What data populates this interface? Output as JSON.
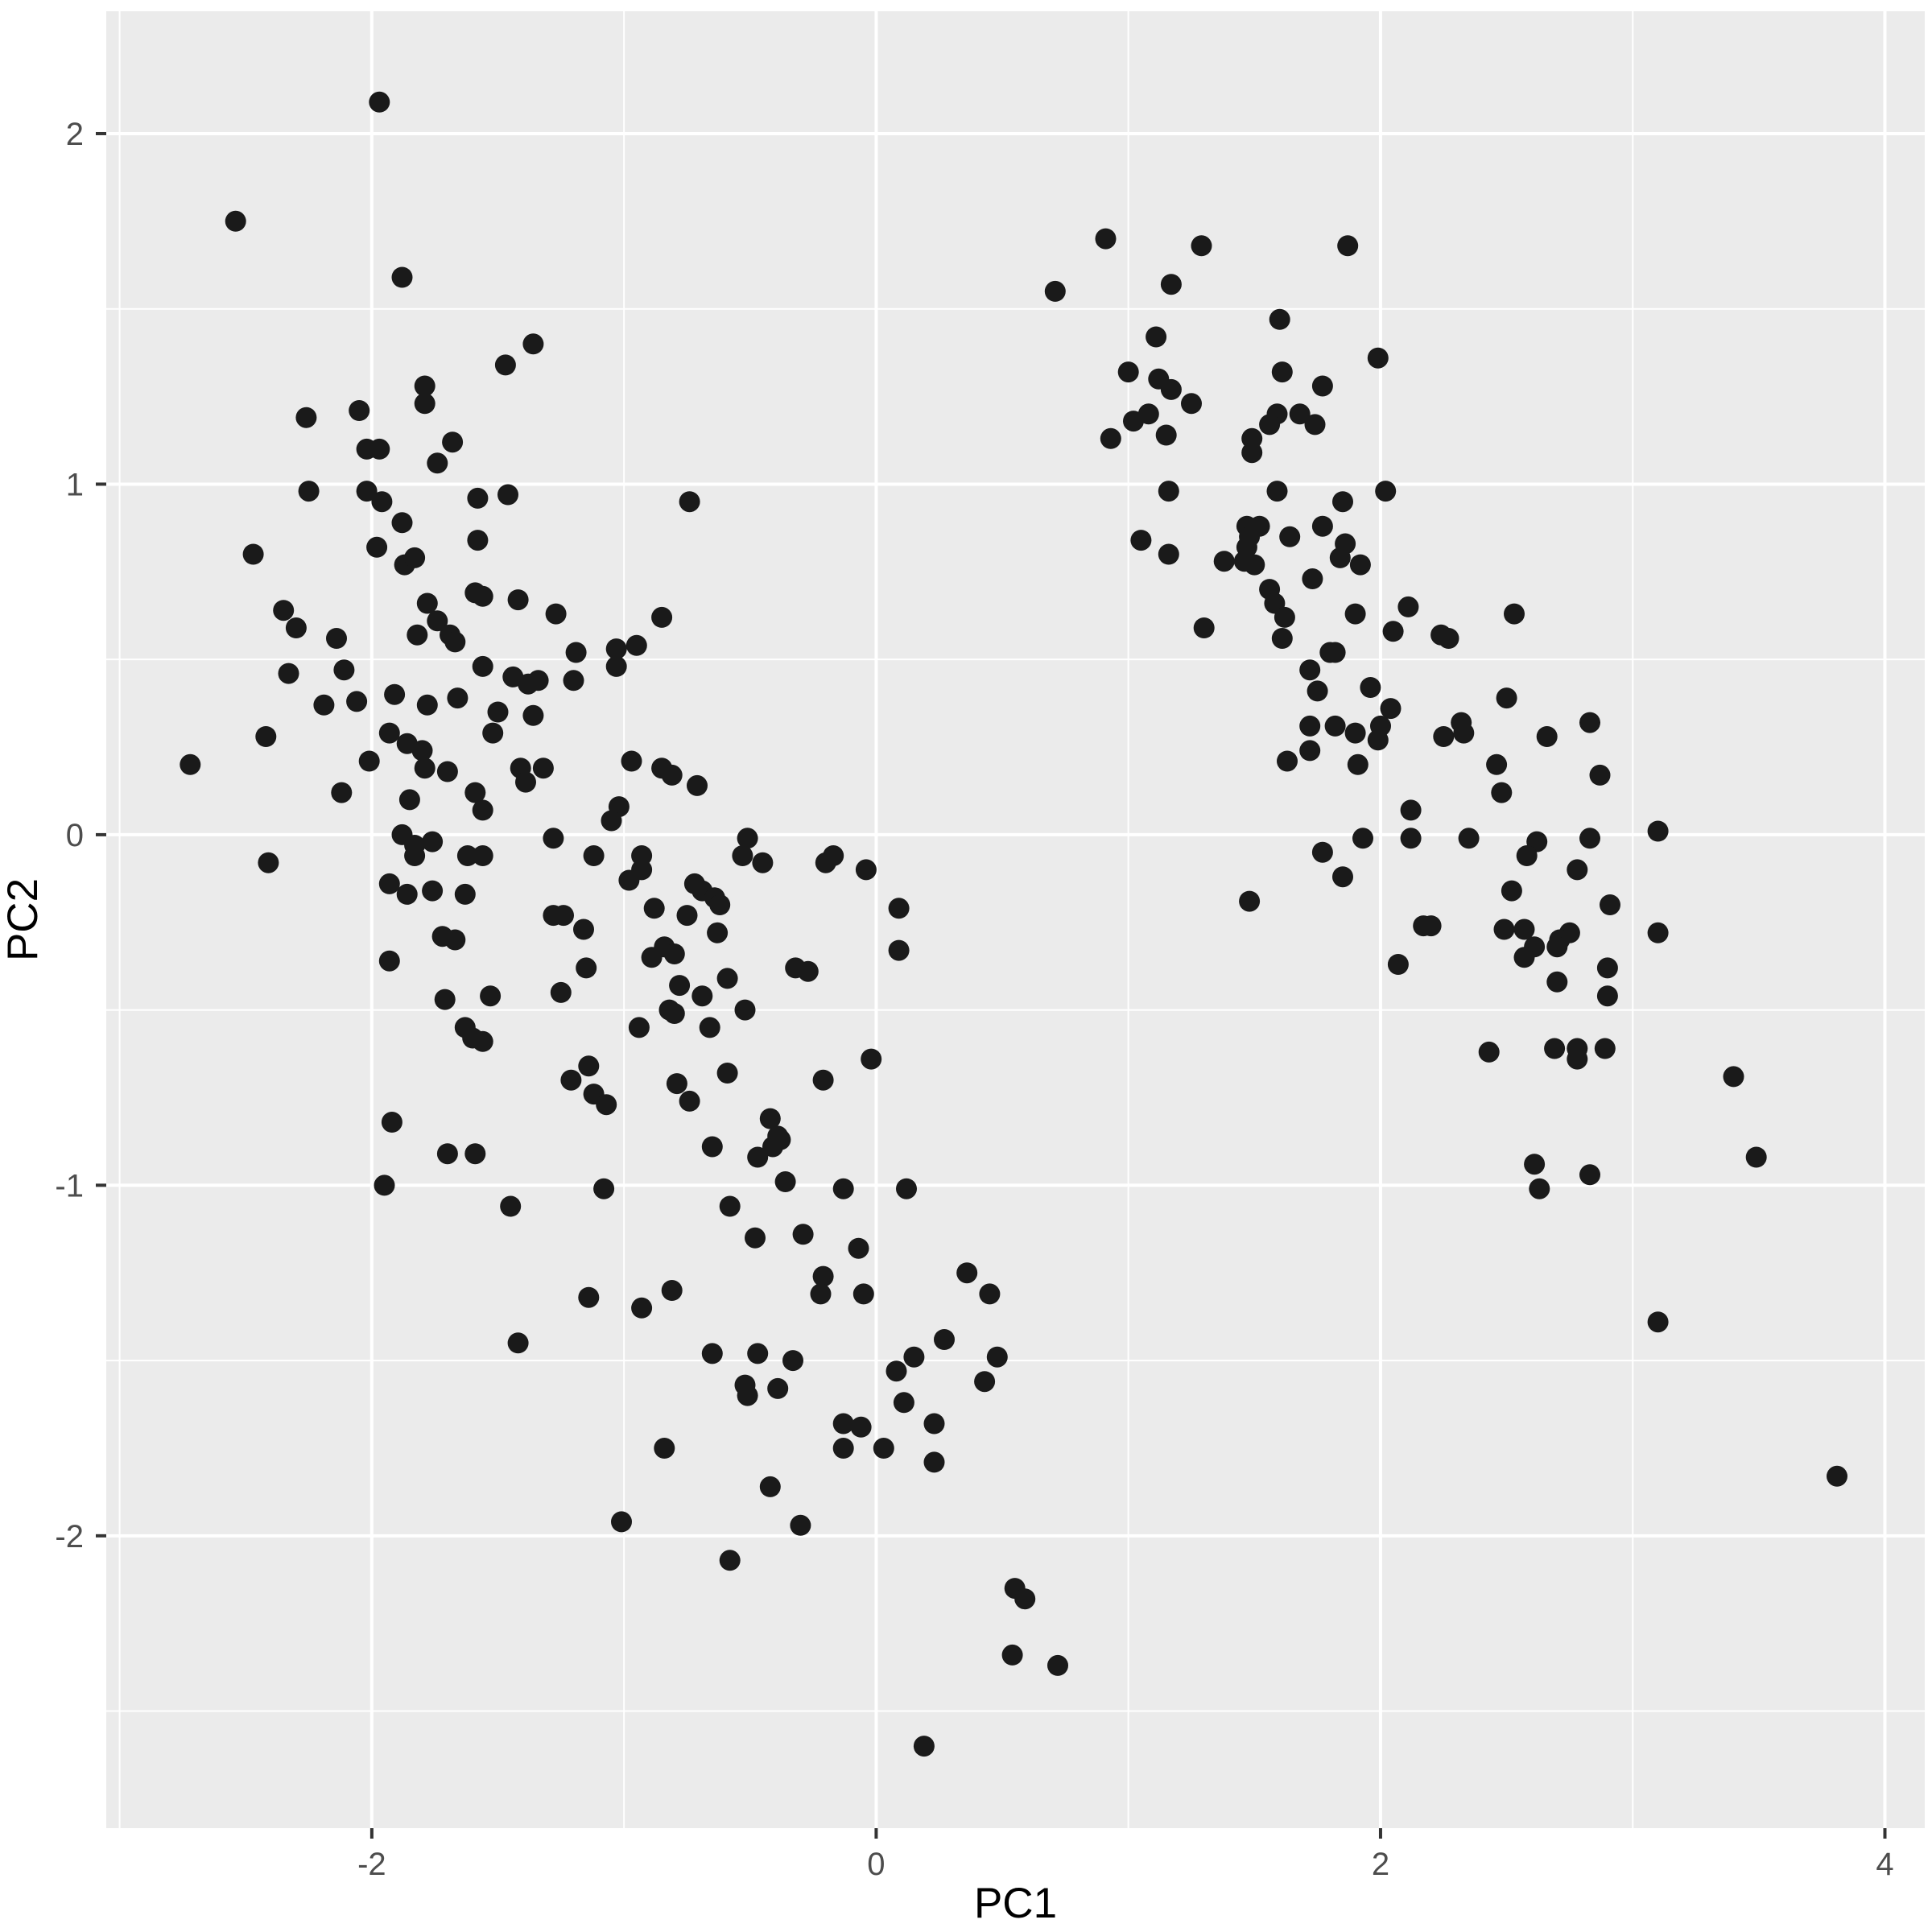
{
  "chart_data": {
    "type": "scatter",
    "title": "",
    "xlabel": "PC1",
    "ylabel": "PC2",
    "legend": "none",
    "grid": "major+minor",
    "panel_bg": "#EBEBEB",
    "grid_color": "#FFFFFF",
    "point_color": "#1A1A1A",
    "tick_color": "#333333",
    "tick_label_color": "#4D4D4D",
    "xlim": [
      -3.053,
      4.158
    ],
    "ylim": [
      -2.834,
      2.349
    ],
    "x_ticks": [
      -2,
      0,
      2,
      4
    ],
    "x_tick_labels": [
      "-2",
      "0",
      "2",
      "4"
    ],
    "y_ticks": [
      -2,
      -1,
      0,
      1,
      2
    ],
    "y_tick_labels": [
      "-2",
      "-1",
      "0",
      "1",
      "2"
    ],
    "x_minor_ticks": [
      -3,
      -1,
      1,
      3
    ],
    "y_minor_ticks": [
      -2.5,
      -1.5,
      -0.5,
      0.5,
      1.5
    ],
    "points": [
      [
        -1.97,
        2.09
      ],
      [
        -2.54,
        1.75
      ],
      [
        -1.88,
        1.59
      ],
      [
        -1.36,
        1.4
      ],
      [
        -1.47,
        1.34
      ],
      [
        -1.79,
        1.28
      ],
      [
        -1.79,
        1.23
      ],
      [
        -2.26,
        1.19
      ],
      [
        -2.05,
        1.21
      ],
      [
        -2.02,
        1.1
      ],
      [
        -1.97,
        1.1
      ],
      [
        -1.68,
        1.12
      ],
      [
        -1.74,
        1.06
      ],
      [
        -2.25,
        0.98
      ],
      [
        -2.02,
        0.98
      ],
      [
        -1.96,
        0.95
      ],
      [
        -1.46,
        0.97
      ],
      [
        -1.58,
        0.96
      ],
      [
        -1.88,
        0.89
      ],
      [
        -2.47,
        0.8
      ],
      [
        -1.87,
        0.77
      ],
      [
        -1.83,
        0.79
      ],
      [
        -1.98,
        0.82
      ],
      [
        -1.58,
        0.84
      ],
      [
        -0.74,
        0.95
      ],
      [
        -1.59,
        0.69
      ],
      [
        -1.56,
        0.68
      ],
      [
        -2.35,
        0.64
      ],
      [
        -2.3,
        0.59
      ],
      [
        -2.14,
        0.56
      ],
      [
        -1.78,
        0.66
      ],
      [
        -1.74,
        0.61
      ],
      [
        -1.82,
        0.57
      ],
      [
        -1.69,
        0.57
      ],
      [
        -1.67,
        0.55
      ],
      [
        -1.42,
        0.67
      ],
      [
        -1.27,
        0.63
      ],
      [
        -0.85,
        0.62
      ],
      [
        -1.19,
        0.52
      ],
      [
        -1.03,
        0.53
      ],
      [
        -0.95,
        0.54
      ],
      [
        -1.03,
        0.48
      ],
      [
        -1.56,
        0.48
      ],
      [
        -2.33,
        0.46
      ],
      [
        -2.11,
        0.47
      ],
      [
        -1.44,
        0.45
      ],
      [
        -1.38,
        0.43
      ],
      [
        -1.34,
        0.44
      ],
      [
        -1.2,
        0.44
      ],
      [
        -2.19,
        0.37
      ],
      [
        -2.06,
        0.38
      ],
      [
        -1.91,
        0.4
      ],
      [
        -1.78,
        0.37
      ],
      [
        -1.66,
        0.39
      ],
      [
        -1.5,
        0.35
      ],
      [
        -1.36,
        0.34
      ],
      [
        -1.52,
        0.29
      ],
      [
        -2.42,
        0.28
      ],
      [
        -1.93,
        0.29
      ],
      [
        -1.86,
        0.26
      ],
      [
        -1.8,
        0.24
      ],
      [
        -2.01,
        0.21
      ],
      [
        -2.72,
        0.2
      ],
      [
        -1.79,
        0.19
      ],
      [
        -1.7,
        0.18
      ],
      [
        -1.41,
        0.19
      ],
      [
        -1.39,
        0.15
      ],
      [
        -1.32,
        0.19
      ],
      [
        -0.97,
        0.21
      ],
      [
        -0.85,
        0.19
      ],
      [
        -0.81,
        0.17
      ],
      [
        -0.71,
        0.14
      ],
      [
        -2.12,
        0.12
      ],
      [
        -1.85,
        0.1
      ],
      [
        -1.59,
        0.12
      ],
      [
        -1.56,
        0.07
      ],
      [
        -1.02,
        0.08
      ],
      [
        -1.05,
        0.04
      ],
      [
        -1.88,
        0.0
      ],
      [
        -1.83,
        -0.03
      ],
      [
        -1.83,
        -0.06
      ],
      [
        -1.76,
        -0.02
      ],
      [
        -1.62,
        -0.06
      ],
      [
        -1.56,
        -0.06
      ],
      [
        -2.41,
        -0.08
      ],
      [
        -1.28,
        -0.01
      ],
      [
        -0.51,
        -0.01
      ],
      [
        -0.53,
        -0.06
      ],
      [
        -1.12,
        -0.06
      ],
      [
        -0.45,
        -0.08
      ],
      [
        -0.93,
        -0.06
      ],
      [
        -0.93,
        -0.1
      ],
      [
        -0.98,
        -0.13
      ],
      [
        -0.2,
        -0.08
      ],
      [
        -0.17,
        -0.06
      ],
      [
        -0.04,
        -0.1
      ],
      [
        -1.93,
        -0.14
      ],
      [
        -1.86,
        -0.17
      ],
      [
        -1.76,
        -0.16
      ],
      [
        -1.63,
        -0.17
      ],
      [
        -0.72,
        -0.14
      ],
      [
        -0.69,
        -0.16
      ],
      [
        -0.64,
        -0.18
      ],
      [
        -0.62,
        -0.2
      ],
      [
        -0.88,
        -0.21
      ],
      [
        -0.75,
        -0.23
      ],
      [
        -1.28,
        -0.23
      ],
      [
        -1.24,
        -0.23
      ],
      [
        -1.16,
        -0.27
      ],
      [
        -0.63,
        -0.28
      ],
      [
        -1.72,
        -0.29
      ],
      [
        -1.67,
        -0.3
      ],
      [
        -0.84,
        -0.32
      ],
      [
        -0.8,
        -0.34
      ],
      [
        -0.89,
        -0.35
      ],
      [
        -1.93,
        -0.36
      ],
      [
        -0.32,
        -0.38
      ],
      [
        -0.27,
        -0.39
      ],
      [
        -1.15,
        -0.38
      ],
      [
        0.09,
        -0.21
      ],
      [
        0.09,
        -0.33
      ],
      [
        -1.53,
        -0.46
      ],
      [
        -1.25,
        -0.45
      ],
      [
        -0.78,
        -0.43
      ],
      [
        -0.59,
        -0.41
      ],
      [
        -0.69,
        -0.46
      ],
      [
        -0.82,
        -0.5
      ],
      [
        -0.8,
        -0.51
      ],
      [
        -0.52,
        -0.5
      ],
      [
        -0.66,
        -0.55
      ],
      [
        -0.94,
        -0.55
      ],
      [
        -1.71,
        -0.47
      ],
      [
        -1.63,
        -0.55
      ],
      [
        -1.6,
        -0.58
      ],
      [
        -1.56,
        -0.59
      ],
      [
        -1.14,
        -0.66
      ],
      [
        -1.21,
        -0.7
      ],
      [
        -1.12,
        -0.74
      ],
      [
        -1.07,
        -0.77
      ],
      [
        -0.79,
        -0.71
      ],
      [
        -0.74,
        -0.76
      ],
      [
        -0.59,
        -0.68
      ],
      [
        -0.02,
        -0.64
      ],
      [
        -0.21,
        -0.7
      ],
      [
        -1.92,
        -0.82
      ],
      [
        -0.42,
        -0.81
      ],
      [
        -0.39,
        -0.86
      ],
      [
        -0.41,
        -0.89
      ],
      [
        -0.38,
        -0.87
      ],
      [
        -0.65,
        -0.89
      ],
      [
        -0.47,
        -0.92
      ],
      [
        -1.7,
        -0.91
      ],
      [
        -1.59,
        -0.91
      ],
      [
        -1.95,
        -1.0
      ],
      [
        -0.36,
        -0.99
      ],
      [
        -0.13,
        -1.01
      ],
      [
        0.12,
        -1.01
      ],
      [
        -1.08,
        -1.01
      ],
      [
        -1.45,
        -1.06
      ],
      [
        -0.58,
        -1.06
      ],
      [
        -0.48,
        -1.15
      ],
      [
        -0.29,
        -1.14
      ],
      [
        -0.07,
        -1.18
      ],
      [
        -0.21,
        -1.26
      ],
      [
        -0.22,
        -1.31
      ],
      [
        -0.05,
        -1.31
      ],
      [
        -0.81,
        -1.3
      ],
      [
        -1.14,
        -1.32
      ],
      [
        -0.93,
        -1.35
      ],
      [
        -1.42,
        -1.45
      ],
      [
        -0.65,
        -1.48
      ],
      [
        -0.47,
        -1.48
      ],
      [
        -0.33,
        -1.5
      ],
      [
        -0.52,
        -1.57
      ],
      [
        -0.51,
        -1.6
      ],
      [
        -0.39,
        -1.58
      ],
      [
        -0.13,
        -1.68
      ],
      [
        -0.06,
        -1.69
      ],
      [
        0.27,
        -1.44
      ],
      [
        0.15,
        -1.49
      ],
      [
        0.08,
        -1.53
      ],
      [
        0.11,
        -1.62
      ],
      [
        0.23,
        -1.68
      ],
      [
        0.36,
        -1.25
      ],
      [
        0.45,
        -1.31
      ],
      [
        0.48,
        -1.49
      ],
      [
        0.43,
        -1.56
      ],
      [
        -0.84,
        -1.75
      ],
      [
        -0.13,
        -1.75
      ],
      [
        0.03,
        -1.75
      ],
      [
        0.23,
        -1.79
      ],
      [
        -0.42,
        -1.86
      ],
      [
        -1.01,
        -1.96
      ],
      [
        -0.3,
        -1.97
      ],
      [
        -0.58,
        -2.07
      ],
      [
        0.55,
        -2.15
      ],
      [
        0.59,
        -2.18
      ],
      [
        0.54,
        -2.34
      ],
      [
        0.72,
        -2.37
      ],
      [
        0.19,
        -2.6
      ],
      [
        0.91,
        1.7
      ],
      [
        1.29,
        1.68
      ],
      [
        1.87,
        1.68
      ],
      [
        0.71,
        1.55
      ],
      [
        1.17,
        1.57
      ],
      [
        1.6,
        1.47
      ],
      [
        1.11,
        1.42
      ],
      [
        1.99,
        1.36
      ],
      [
        1.0,
        1.32
      ],
      [
        1.12,
        1.3
      ],
      [
        1.61,
        1.32
      ],
      [
        1.77,
        1.28
      ],
      [
        1.17,
        1.27
      ],
      [
        1.25,
        1.23
      ],
      [
        1.02,
        1.18
      ],
      [
        1.08,
        1.2
      ],
      [
        0.93,
        1.13
      ],
      [
        1.15,
        1.14
      ],
      [
        1.59,
        1.2
      ],
      [
        1.56,
        1.17
      ],
      [
        1.68,
        1.2
      ],
      [
        1.74,
        1.17
      ],
      [
        1.49,
        1.13
      ],
      [
        1.49,
        1.09
      ],
      [
        1.16,
        0.98
      ],
      [
        1.59,
        0.98
      ],
      [
        2.02,
        0.98
      ],
      [
        1.85,
        0.95
      ],
      [
        1.05,
        0.84
      ],
      [
        1.47,
        0.88
      ],
      [
        1.52,
        0.88
      ],
      [
        1.48,
        0.85
      ],
      [
        1.64,
        0.85
      ],
      [
        1.77,
        0.88
      ],
      [
        1.16,
        0.8
      ],
      [
        1.47,
        0.82
      ],
      [
        1.86,
        0.83
      ],
      [
        1.84,
        0.79
      ],
      [
        1.38,
        0.78
      ],
      [
        1.46,
        0.78
      ],
      [
        1.5,
        0.77
      ],
      [
        1.92,
        0.77
      ],
      [
        1.73,
        0.73
      ],
      [
        1.56,
        0.7
      ],
      [
        1.58,
        0.66
      ],
      [
        1.3,
        0.59
      ],
      [
        1.62,
        0.62
      ],
      [
        1.61,
        0.56
      ],
      [
        1.9,
        0.63
      ],
      [
        2.11,
        0.65
      ],
      [
        2.05,
        0.58
      ],
      [
        2.24,
        0.57
      ],
      [
        2.27,
        0.56
      ],
      [
        1.8,
        0.52
      ],
      [
        1.82,
        0.52
      ],
      [
        1.72,
        0.47
      ],
      [
        1.75,
        0.41
      ],
      [
        1.96,
        0.42
      ],
      [
        2.04,
        0.36
      ],
      [
        1.72,
        0.31
      ],
      [
        1.82,
        0.31
      ],
      [
        2.0,
        0.31
      ],
      [
        1.9,
        0.29
      ],
      [
        1.99,
        0.27
      ],
      [
        2.25,
        0.28
      ],
      [
        1.72,
        0.24
      ],
      [
        1.63,
        0.21
      ],
      [
        1.91,
        0.2
      ],
      [
        2.53,
        0.63
      ],
      [
        2.5,
        0.39
      ],
      [
        2.32,
        0.32
      ],
      [
        2.33,
        0.29
      ],
      [
        2.66,
        0.28
      ],
      [
        2.83,
        0.32
      ],
      [
        2.46,
        0.2
      ],
      [
        2.87,
        0.17
      ],
      [
        2.48,
        0.12
      ],
      [
        2.12,
        0.07
      ],
      [
        2.35,
        -0.01
      ],
      [
        1.93,
        -0.01
      ],
      [
        2.12,
        -0.01
      ],
      [
        1.77,
        -0.05
      ],
      [
        2.62,
        -0.02
      ],
      [
        2.58,
        -0.06
      ],
      [
        2.83,
        -0.01
      ],
      [
        3.1,
        0.01
      ],
      [
        1.85,
        -0.12
      ],
      [
        2.78,
        -0.1
      ],
      [
        1.48,
        -0.19
      ],
      [
        2.52,
        -0.16
      ],
      [
        2.17,
        -0.26
      ],
      [
        2.2,
        -0.26
      ],
      [
        2.91,
        -0.2
      ],
      [
        2.49,
        -0.27
      ],
      [
        2.57,
        -0.27
      ],
      [
        2.75,
        -0.28
      ],
      [
        2.71,
        -0.3
      ],
      [
        2.7,
        -0.32
      ],
      [
        2.61,
        -0.32
      ],
      [
        2.57,
        -0.35
      ],
      [
        3.1,
        -0.28
      ],
      [
        2.07,
        -0.37
      ],
      [
        2.9,
        -0.38
      ],
      [
        2.7,
        -0.42
      ],
      [
        2.9,
        -0.46
      ],
      [
        2.43,
        -0.62
      ],
      [
        2.69,
        -0.61
      ],
      [
        2.78,
        -0.61
      ],
      [
        2.89,
        -0.61
      ],
      [
        2.78,
        -0.64
      ],
      [
        3.4,
        -0.69
      ],
      [
        3.49,
        -0.92
      ],
      [
        2.61,
        -0.94
      ],
      [
        2.83,
        -0.97
      ],
      [
        2.63,
        -1.01
      ],
      [
        3.1,
        -1.39
      ],
      [
        3.81,
        -1.83
      ]
    ]
  }
}
